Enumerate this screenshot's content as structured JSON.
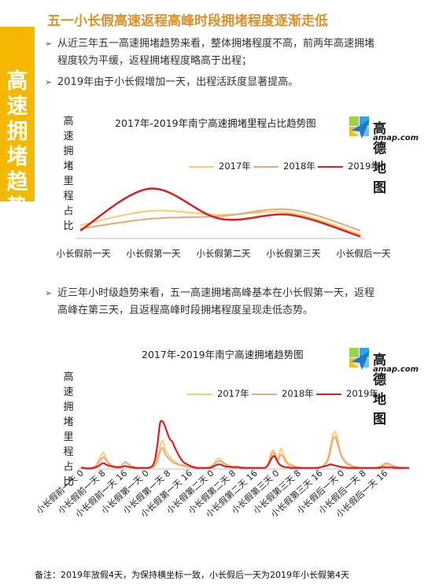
{
  "side_label": [
    "高",
    "速",
    "拥",
    "堵",
    "趋",
    "势"
  ],
  "heading": "五一小长假高速返程高峰时段拥堵程度逐渐走低",
  "bullets_top": [
    {
      "line1": "从近三年五一高速拥堵趋势来看，整体拥堵程度不高，前两年高速拥堵",
      "line2": "程度较为平缓，返程拥堵程度略高于出程；"
    },
    {
      "line1": "2019年由于小长假增加一天，出程活跃度显著提高。",
      "line2": ""
    }
  ],
  "bullet_mid": {
    "line1": "近三年小时级趋势来看，五一高速拥堵高峰基本在小长假第一天，返程",
    "line2": "高峰在第三天，且返程高峰时段拥堵程度呈现走低态势。"
  },
  "logo": {
    "cn": "高德地图",
    "en": "amap.com"
  },
  "note": "备注：2019年放假4天，为保持横坐标一致，小长假后一天为2019年小长假第4天",
  "colors": {
    "s2017": "#f6cc6a",
    "s2018": "#eaa67a",
    "s2019": "#d62121",
    "accent": "#f5b800",
    "heading": "#d9902b"
  },
  "chart_data": [
    {
      "type": "line",
      "title": "2017年-2019年南宁高速拥堵里程占比趋势图",
      "ylabel": "高速拥堵里程占比",
      "categories": [
        "小长假前一天",
        "小长假第一天",
        "小长假第二天",
        "小长假第三天",
        "小长假后一天"
      ],
      "series": [
        {
          "name": "2017年",
          "values": [
            2.0,
            4.2,
            3.6,
            3.9,
            0.6
          ]
        },
        {
          "name": "2018年",
          "values": [
            1.5,
            3.0,
            3.4,
            4.4,
            1.2
          ]
        },
        {
          "name": "2019年",
          "values": [
            1.2,
            7.6,
            3.0,
            3.6,
            0.3
          ]
        }
      ],
      "ylim": [
        0,
        9
      ],
      "legend": "top-right",
      "grid": false
    },
    {
      "type": "line",
      "title": "2017年-2019年南宁高速拥堵趋势图",
      "ylabel": "高速拥堵里程占比",
      "x_tick_labels": [
        "小长假前一天 0",
        "小长假前一天 8",
        "小长假前一天 16",
        "小长假第一天 0",
        "小长假第一天 8",
        "小长假第一天 16",
        "小长假第二天 0",
        "小长假第二天 8",
        "小长假第二天 16",
        "小长假第三天 0",
        "小长假第三天 8",
        "小长假第三天 16",
        "小长假后一天 0",
        "小长假后一天 8",
        "小长假后一天 16"
      ],
      "series": [
        {
          "name": "2017年",
          "values": [
            0.4,
            0.3,
            0.2,
            0.2,
            0.2,
            0.3,
            0.6,
            1.4,
            2.2,
            2.8,
            1.9,
            1.2,
            0.8,
            0.6,
            0.5,
            0.4,
            0.5,
            0.8,
            1.2,
            0.9,
            0.5,
            0.4,
            0.3,
            0.2,
            0.2,
            0.2,
            0.2,
            0.2,
            0.2,
            0.3,
            0.8,
            2.0,
            3.6,
            4.8,
            3.4,
            2.6,
            2.0,
            1.6,
            1.3,
            1.0,
            0.8,
            0.7,
            0.6,
            0.5,
            0.4,
            0.3,
            0.2,
            0.2,
            0.2,
            0.2,
            0.2,
            0.2,
            0.3,
            0.6,
            1.0,
            1.6,
            1.8,
            1.4,
            1.0,
            0.8,
            0.6,
            0.5,
            0.5,
            0.5,
            0.4,
            0.3,
            0.3,
            0.2,
            0.2,
            0.2,
            0.2,
            0.2,
            0.2,
            0.2,
            0.2,
            0.4,
            1.2,
            2.6,
            3.2,
            2.4,
            1.8,
            3.4,
            2.6,
            1.6,
            1.0,
            0.8,
            0.6,
            0.4,
            0.3,
            0.3,
            0.2,
            0.2,
            0.2,
            0.2,
            0.2,
            0.2,
            0.2,
            0.3,
            0.5,
            1.0,
            1.8,
            3.6,
            5.6,
            6.2,
            5.0,
            3.2,
            2.0,
            1.4,
            1.0,
            0.8,
            0.5,
            0.4,
            0.3,
            0.2,
            0.2,
            0.2,
            0.2,
            0.2,
            0.2,
            0.2,
            0.3,
            0.4,
            0.5,
            0.6,
            0.8,
            0.8,
            0.6,
            0.5,
            0.4,
            0.3,
            0.3,
            0.2,
            0.2,
            0.2
          ]
        },
        {
          "name": "2018年",
          "values": [
            0.3,
            0.2,
            0.2,
            0.2,
            0.2,
            0.3,
            0.5,
            1.0,
            1.6,
            2.0,
            1.6,
            1.0,
            0.7,
            0.5,
            0.4,
            0.4,
            0.5,
            0.8,
            1.2,
            0.9,
            0.6,
            0.4,
            0.3,
            0.2,
            0.2,
            0.2,
            0.2,
            0.2,
            0.2,
            0.3,
            0.6,
            1.4,
            2.8,
            3.6,
            2.6,
            2.0,
            1.6,
            1.2,
            1.0,
            0.8,
            0.7,
            0.6,
            0.5,
            0.4,
            0.3,
            0.3,
            0.2,
            0.2,
            0.2,
            0.2,
            0.2,
            0.2,
            0.3,
            0.5,
            0.8,
            1.2,
            1.4,
            1.2,
            0.9,
            0.7,
            0.5,
            0.4,
            0.4,
            0.4,
            0.3,
            0.3,
            0.2,
            0.2,
            0.2,
            0.2,
            0.2,
            0.2,
            0.2,
            0.2,
            0.2,
            0.3,
            1.0,
            2.2,
            2.8,
            2.0,
            1.6,
            2.4,
            2.0,
            1.2,
            0.8,
            0.6,
            0.5,
            0.4,
            0.3,
            0.2,
            0.2,
            0.2,
            0.2,
            0.2,
            0.2,
            0.2,
            0.2,
            0.3,
            0.4,
            0.8,
            1.4,
            2.8,
            4.8,
            5.4,
            4.2,
            2.8,
            1.8,
            1.2,
            0.8,
            0.6,
            0.5,
            0.4,
            0.3,
            0.2,
            0.2,
            0.2,
            0.2,
            0.2,
            0.2,
            0.2,
            0.3,
            0.4,
            0.6,
            0.9,
            1.0,
            0.8,
            0.6,
            0.5,
            0.4,
            0.3,
            0.2,
            0.2,
            0.2,
            0.2
          ]
        },
        {
          "name": "2019年",
          "values": [
            0.2,
            0.2,
            0.1,
            0.1,
            0.1,
            0.2,
            0.3,
            0.5,
            0.8,
            1.0,
            0.8,
            0.6,
            0.5,
            0.4,
            0.3,
            0.3,
            0.3,
            0.4,
            0.5,
            0.4,
            0.3,
            0.3,
            0.2,
            0.2,
            0.2,
            0.2,
            0.2,
            0.2,
            0.3,
            0.6,
            1.6,
            4.2,
            7.6,
            8.0,
            7.2,
            6.0,
            5.0,
            4.6,
            3.6,
            2.8,
            2.0,
            1.4,
            1.0,
            0.8,
            0.6,
            0.4,
            0.3,
            0.2,
            0.2,
            0.2,
            0.2,
            0.2,
            0.2,
            0.3,
            0.5,
            0.7,
            0.8,
            0.7,
            0.5,
            0.4,
            0.4,
            0.3,
            0.3,
            0.3,
            0.3,
            0.2,
            0.2,
            0.2,
            0.2,
            0.2,
            0.2,
            0.2,
            0.2,
            0.2,
            0.2,
            0.3,
            0.8,
            1.6,
            2.2,
            1.8,
            1.0,
            0.6,
            0.4,
            0.3,
            0.3,
            0.2,
            0.2,
            0.2,
            0.2,
            0.2,
            0.2,
            0.2,
            0.2,
            0.2,
            0.2,
            0.2,
            0.2,
            0.3,
            0.4,
            0.5,
            0.6,
            0.8,
            0.7,
            0.6,
            0.5,
            0.4,
            0.3,
            0.3,
            0.2,
            0.2,
            0.2,
            0.2,
            0.2,
            0.2,
            0.2,
            0.2,
            0.2,
            0.2,
            0.2,
            0.2,
            0.2,
            0.2,
            0.3,
            0.3,
            0.3,
            0.3,
            0.3,
            0.2,
            0.2,
            0.2,
            0.2,
            0.2,
            0.2,
            0.2
          ]
        }
      ],
      "ylim": [
        0,
        10
      ],
      "legend": "top-right",
      "grid": false
    }
  ]
}
